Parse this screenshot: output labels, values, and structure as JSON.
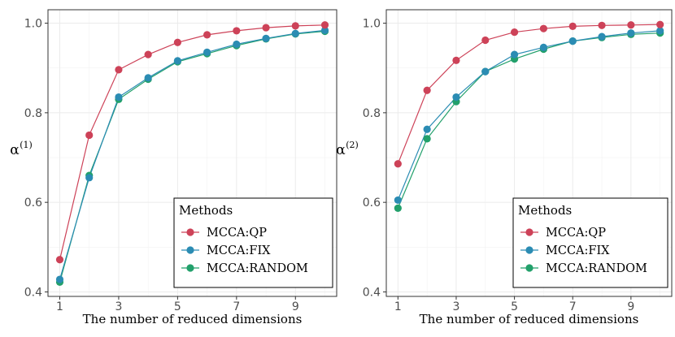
{
  "chart_data": [
    {
      "type": "line",
      "xlabel": "The number of reduced dimensions",
      "ylabel": "α",
      "ylabel_sup": "(1)",
      "x": [
        1,
        2,
        3,
        4,
        5,
        6,
        7,
        8,
        9,
        10
      ],
      "xticks": [
        1,
        3,
        5,
        7,
        9
      ],
      "yticks": [
        0.4,
        0.6,
        0.8,
        1.0
      ],
      "ytick_labels": [
        "0.4",
        "0.6",
        "0.8",
        "1.0"
      ],
      "xlim": [
        0.6,
        10.4
      ],
      "ylim": [
        0.39,
        1.03
      ],
      "grid": true,
      "legend_title": "Methods",
      "legend_position": "bottom-right",
      "series": [
        {
          "name": "MCCA:QP",
          "color": "#cd4258",
          "values": [
            0.472,
            0.75,
            0.896,
            0.93,
            0.957,
            0.974,
            0.983,
            0.99,
            0.994,
            0.996
          ]
        },
        {
          "name": "MCCA:FIX",
          "color": "#2b8cb3",
          "values": [
            0.428,
            0.655,
            0.835,
            0.878,
            0.916,
            0.935,
            0.953,
            0.966,
            0.977,
            0.984
          ]
        },
        {
          "name": "MCCA:RANDOM",
          "color": "#22a06b",
          "values": [
            0.422,
            0.66,
            0.83,
            0.875,
            0.914,
            0.932,
            0.95,
            0.965,
            0.976,
            0.982
          ]
        }
      ]
    },
    {
      "type": "line",
      "xlabel": "The number of reduced dimensions",
      "ylabel": "α",
      "ylabel_sup": "(2)",
      "x": [
        1,
        2,
        3,
        4,
        5,
        6,
        7,
        8,
        9,
        10
      ],
      "xticks": [
        1,
        3,
        5,
        7,
        9
      ],
      "yticks": [
        0.4,
        0.6,
        0.8,
        1.0
      ],
      "ytick_labels": [
        "0.4",
        "0.6",
        "0.8",
        "1.0"
      ],
      "xlim": [
        0.6,
        10.4
      ],
      "ylim": [
        0.39,
        1.03
      ],
      "grid": true,
      "legend_title": "Methods",
      "legend_position": "bottom-right",
      "series": [
        {
          "name": "MCCA:QP",
          "color": "#cd4258",
          "values": [
            0.686,
            0.85,
            0.917,
            0.962,
            0.98,
            0.988,
            0.993,
            0.995,
            0.996,
            0.997
          ]
        },
        {
          "name": "MCCA:FIX",
          "color": "#2b8cb3",
          "values": [
            0.605,
            0.763,
            0.835,
            0.892,
            0.93,
            0.946,
            0.96,
            0.97,
            0.978,
            0.983
          ]
        },
        {
          "name": "MCCA:RANDOM",
          "color": "#22a06b",
          "values": [
            0.587,
            0.742,
            0.825,
            0.892,
            0.92,
            0.942,
            0.96,
            0.968,
            0.975,
            0.978
          ]
        }
      ]
    }
  ]
}
